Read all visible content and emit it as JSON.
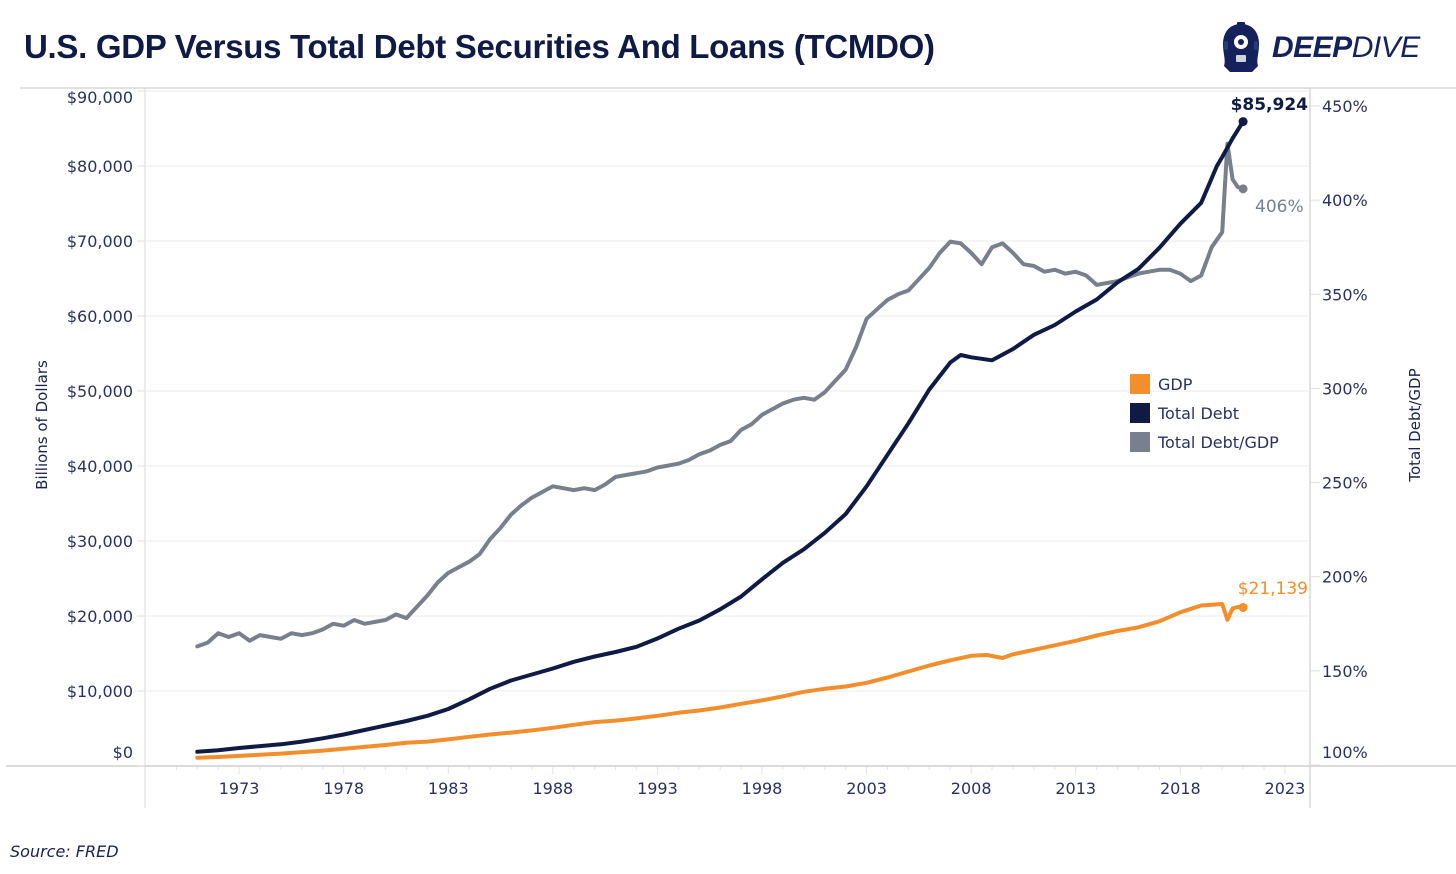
{
  "title": "U.S. GDP Versus Total Debt Securities And Loans (TCMDO)",
  "logo": {
    "bold_text": "DEEP",
    "thin_text": "DIVE",
    "icon": "diving-helmet-icon"
  },
  "source": "Source: FRED",
  "colors": {
    "gdp": "#f28e2b",
    "total_debt": "#0f1a45",
    "ratio": "#79808d",
    "title": "#0f1a45",
    "grid": "#ebebeb"
  },
  "chart_data": {
    "type": "line",
    "title": "U.S. GDP Versus Total Debt Securities And Loans (TCMDO)",
    "xlabel": "",
    "ylabel": "Billions of Dollars",
    "y2label": "Total Debt/GDP",
    "xlim": [
      1968.5,
      2024.2
    ],
    "ylim": [
      0,
      90000
    ],
    "y2lim": [
      100,
      460
    ],
    "x_ticks": [
      "1973",
      "1978",
      "1983",
      "1988",
      "1993",
      "1998",
      "2003",
      "2008",
      "2013",
      "2018",
      "2023"
    ],
    "y_ticks": [
      "$0",
      "$10,000",
      "$20,000",
      "$30,000",
      "$40,000",
      "$50,000",
      "$60,000",
      "$70,000",
      "$80,000",
      "$90,000"
    ],
    "y_tick_values": [
      0,
      10000,
      20000,
      30000,
      40000,
      50000,
      60000,
      70000,
      80000,
      90000
    ],
    "y2_ticks": [
      "100%",
      "150%",
      "200%",
      "250%",
      "300%",
      "350%",
      "400%",
      "450%"
    ],
    "y2_tick_values": [
      100,
      150,
      200,
      250,
      300,
      350,
      400,
      450
    ],
    "grid": true,
    "legend_position": "right",
    "legend": [
      "GDP",
      "Total Debt",
      "Total Debt/GDP"
    ],
    "annotations": {
      "total_debt_last": "$85,924",
      "ratio_last": "406%",
      "gdp_last": "$21,139"
    },
    "series": [
      {
        "name": "GDP",
        "axis": "left",
        "x": [
          1971,
          1972,
          1973,
          1974,
          1975,
          1976,
          1977,
          1978,
          1979,
          1980,
          1981,
          1982,
          1983,
          1984,
          1985,
          1986,
          1987,
          1988,
          1989,
          1990,
          1991,
          1992,
          1993,
          1994,
          1995,
          1996,
          1997,
          1998,
          1999,
          2000,
          2001,
          2002,
          2003,
          2004,
          2005,
          2006,
          2007,
          2008,
          2008.75,
          2009.5,
          2010,
          2011,
          2012,
          2013,
          2014,
          2015,
          2016,
          2017,
          2018,
          2019,
          2020,
          2020.25,
          2020.5,
          2020.75,
          2021.0
        ],
        "values": [
          1100,
          1200,
          1350,
          1500,
          1650,
          1850,
          2050,
          2300,
          2550,
          2800,
          3100,
          3250,
          3550,
          3900,
          4200,
          4450,
          4750,
          5100,
          5500,
          5850,
          6050,
          6350,
          6700,
          7100,
          7400,
          7800,
          8300,
          8750,
          9300,
          9900,
          10300,
          10600,
          11100,
          11800,
          12600,
          13400,
          14100,
          14700,
          14800,
          14400,
          14900,
          15500,
          16100,
          16700,
          17400,
          18000,
          18500,
          19300,
          20500,
          21400,
          21600,
          19500,
          21000,
          21200,
          21139
        ]
      },
      {
        "name": "Total Debt",
        "axis": "left",
        "x": [
          1971,
          1972,
          1973,
          1974,
          1975,
          1976,
          1977,
          1978,
          1979,
          1980,
          1981,
          1982,
          1983,
          1984,
          1985,
          1986,
          1987,
          1988,
          1989,
          1990,
          1991,
          1992,
          1993,
          1994,
          1995,
          1996,
          1997,
          1998,
          1999,
          2000,
          2001,
          2002,
          2003,
          2004,
          2005,
          2006,
          2007,
          2007.5,
          2008,
          2009,
          2010,
          2011,
          2012,
          2013,
          2014,
          2015,
          2016,
          2017,
          2018,
          2019,
          2019.75,
          2020,
          2020.5,
          2021.0
        ],
        "values": [
          1900,
          2100,
          2400,
          2650,
          2900,
          3250,
          3700,
          4200,
          4800,
          5400,
          6000,
          6700,
          7600,
          8900,
          10300,
          11400,
          12200,
          13000,
          13900,
          14600,
          15200,
          15900,
          17000,
          18300,
          19400,
          20900,
          22600,
          24900,
          27100,
          28900,
          31100,
          33600,
          37300,
          41500,
          45700,
          50200,
          53800,
          54800,
          54500,
          54100,
          55600,
          57500,
          58800,
          60600,
          62200,
          64500,
          66300,
          69100,
          72300,
          75100,
          80000,
          81200,
          83700,
          85924
        ]
      },
      {
        "name": "Total Debt/GDP",
        "axis": "right",
        "x": [
          1971,
          1971.5,
          1972,
          1972.5,
          1973,
          1973.5,
          1974,
          1974.5,
          1975,
          1975.5,
          1976,
          1976.5,
          1977,
          1977.5,
          1978,
          1978.5,
          1979,
          1979.5,
          1980,
          1980.5,
          1981,
          1981.5,
          1982,
          1982.5,
          1983,
          1983.5,
          1984,
          1984.5,
          1985,
          1985.5,
          1986,
          1986.5,
          1987,
          1987.5,
          1988,
          1988.5,
          1989,
          1989.5,
          1990,
          1990.5,
          1991,
          1991.5,
          1992,
          1992.5,
          1993,
          1993.5,
          1994,
          1994.5,
          1995,
          1995.5,
          1996,
          1996.5,
          1997,
          1997.5,
          1998,
          1998.5,
          1999,
          1999.5,
          2000,
          2000.5,
          2001,
          2001.5,
          2002,
          2002.5,
          2003,
          2003.5,
          2004,
          2004.5,
          2005,
          2005.5,
          2006,
          2006.5,
          2007,
          2007.5,
          2008,
          2008.5,
          2009,
          2009.5,
          2010,
          2010.5,
          2011,
          2011.5,
          2012,
          2012.5,
          2013,
          2013.5,
          2014,
          2014.5,
          2015,
          2015.5,
          2016,
          2016.5,
          2017,
          2017.5,
          2018,
          2018.5,
          2019,
          2019.5,
          2020,
          2020.25,
          2020.5,
          2020.75,
          2021.0
        ],
        "values": [
          163,
          165,
          170,
          168,
          170,
          166,
          169,
          168,
          167,
          170,
          169,
          170,
          172,
          175,
          174,
          177,
          175,
          176,
          177,
          180,
          178,
          184,
          190,
          197,
          202,
          205,
          208,
          212,
          220,
          226,
          233,
          238,
          242,
          245,
          248,
          247,
          246,
          247,
          246,
          249,
          253,
          254,
          255,
          256,
          258,
          259,
          260,
          262,
          265,
          267,
          270,
          272,
          278,
          281,
          286,
          289,
          292,
          294,
          295,
          294,
          298,
          304,
          310,
          322,
          337,
          342,
          347,
          350,
          352,
          358,
          364,
          372,
          378,
          377,
          372,
          366,
          375,
          377,
          372,
          366,
          365,
          362,
          363,
          361,
          362,
          360,
          355,
          356,
          357,
          359,
          361,
          362,
          363,
          363,
          361,
          357,
          360,
          375,
          383,
          430,
          411,
          407,
          406
        ]
      }
    ]
  }
}
